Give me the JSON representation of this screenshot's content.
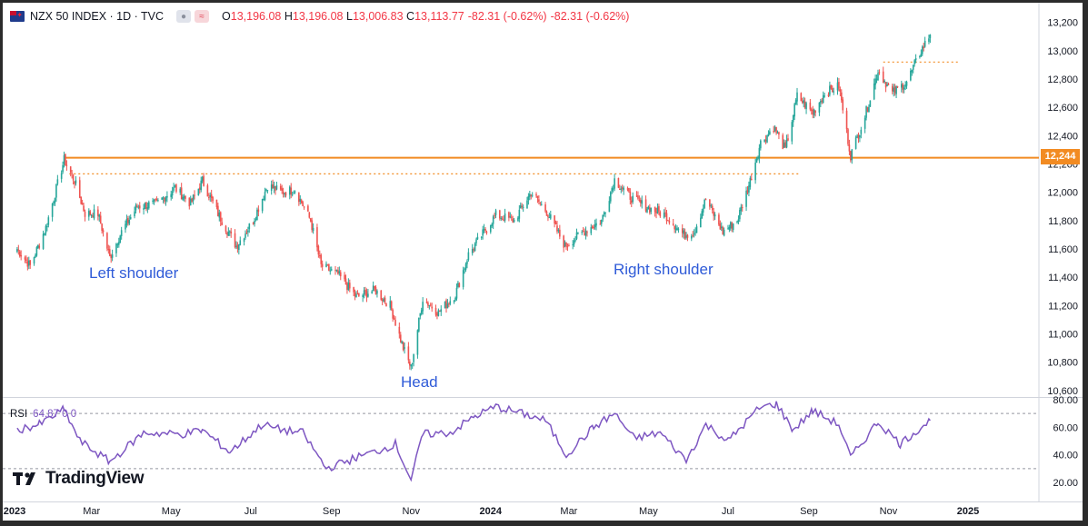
{
  "header": {
    "title": "NZX 50 INDEX · 1D · TVC",
    "open": "13,196.08",
    "high": "13,196.08",
    "low": "13,006.83",
    "close": "13,113.77",
    "change": "-82.31 (-0.62%)",
    "change2": "-82.31 (-0.62%)",
    "open_label": "O",
    "high_label": "H",
    "low_label": "L",
    "close_label": "C"
  },
  "rsi_panel": {
    "label": "RSI",
    "values": "64.87 0 0"
  },
  "brand": {
    "name": "TradingView"
  },
  "annotations": {
    "left_shoulder": "Left shoulder",
    "head": "Head",
    "right_shoulder": "Right shoulder"
  },
  "price_tag": "12,244",
  "colors": {
    "up": "#26a69a",
    "down": "#ef5350",
    "level": "#f28b22",
    "rsi": "#7e57c2",
    "label_blue": "#2f5bd8"
  },
  "chart_data": {
    "type": "candlestick",
    "y_axis_ticks": [
      "13,200",
      "13,000",
      "12,800",
      "12,600",
      "12,400",
      "12,200",
      "12,000",
      "11,800",
      "11,600",
      "11,400",
      "11,200",
      "11,000",
      "10,800",
      "10,600"
    ],
    "ylim": [
      10560,
      13230
    ],
    "x_ticks": [
      "2023",
      "Mar",
      "May",
      "Jul",
      "Sep",
      "Nov",
      "2024",
      "Mar",
      "May",
      "Jul",
      "Sep",
      "Nov",
      "2025"
    ],
    "series_close_anchors": [
      {
        "date": "2023-01-03",
        "close": 11600
      },
      {
        "date": "2023-01-13",
        "close": 11480
      },
      {
        "date": "2023-01-25",
        "close": 11750
      },
      {
        "date": "2023-02-08",
        "close": 12230
      },
      {
        "date": "2023-02-16",
        "close": 12080
      },
      {
        "date": "2023-02-24",
        "close": 11850
      },
      {
        "date": "2023-03-06",
        "close": 11850
      },
      {
        "date": "2023-03-15",
        "close": 11540
      },
      {
        "date": "2023-03-24",
        "close": 11720
      },
      {
        "date": "2023-04-05",
        "close": 11900
      },
      {
        "date": "2023-04-20",
        "close": 11920
      },
      {
        "date": "2023-05-04",
        "close": 12030
      },
      {
        "date": "2023-05-16",
        "close": 11920
      },
      {
        "date": "2023-05-25",
        "close": 12080
      },
      {
        "date": "2023-06-06",
        "close": 11850
      },
      {
        "date": "2023-06-20",
        "close": 11620
      },
      {
        "date": "2023-07-03",
        "close": 11800
      },
      {
        "date": "2023-07-14",
        "close": 12050
      },
      {
        "date": "2023-07-25",
        "close": 12000
      },
      {
        "date": "2023-08-04",
        "close": 12020
      },
      {
        "date": "2023-08-16",
        "close": 11800
      },
      {
        "date": "2023-08-24",
        "close": 11480
      },
      {
        "date": "2023-09-06",
        "close": 11420
      },
      {
        "date": "2023-09-20",
        "close": 11260
      },
      {
        "date": "2023-10-04",
        "close": 11310
      },
      {
        "date": "2023-10-16",
        "close": 11200
      },
      {
        "date": "2023-10-26",
        "close": 10900
      },
      {
        "date": "2023-11-01",
        "close": 10760
      },
      {
        "date": "2023-11-10",
        "close": 11250
      },
      {
        "date": "2023-11-22",
        "close": 11150
      },
      {
        "date": "2023-12-05",
        "close": 11280
      },
      {
        "date": "2023-12-15",
        "close": 11560
      },
      {
        "date": "2024-01-05",
        "close": 11840
      },
      {
        "date": "2024-01-19",
        "close": 11800
      },
      {
        "date": "2024-02-01",
        "close": 12000
      },
      {
        "date": "2024-02-14",
        "close": 11850
      },
      {
        "date": "2024-02-27",
        "close": 11620
      },
      {
        "date": "2024-03-12",
        "close": 11720
      },
      {
        "date": "2024-03-26",
        "close": 11800
      },
      {
        "date": "2024-04-05",
        "close": 12090
      },
      {
        "date": "2024-04-19",
        "close": 11950
      },
      {
        "date": "2024-05-03",
        "close": 11880
      },
      {
        "date": "2024-05-14",
        "close": 11840
      },
      {
        "date": "2024-05-28",
        "close": 11700
      },
      {
        "date": "2024-06-05",
        "close": 11720
      },
      {
        "date": "2024-06-14",
        "close": 11950
      },
      {
        "date": "2024-06-27",
        "close": 11720
      },
      {
        "date": "2024-07-08",
        "close": 11800
      },
      {
        "date": "2024-07-17",
        "close": 12050
      },
      {
        "date": "2024-07-26",
        "close": 12350
      },
      {
        "date": "2024-08-05",
        "close": 12460
      },
      {
        "date": "2024-08-14",
        "close": 12300
      },
      {
        "date": "2024-08-23",
        "close": 12680
      },
      {
        "date": "2024-09-04",
        "close": 12560
      },
      {
        "date": "2024-09-13",
        "close": 12700
      },
      {
        "date": "2024-09-24",
        "close": 12750
      },
      {
        "date": "2024-10-03",
        "close": 12260
      },
      {
        "date": "2024-10-14",
        "close": 12540
      },
      {
        "date": "2024-10-24",
        "close": 12860
      },
      {
        "date": "2024-11-04",
        "close": 12700
      },
      {
        "date": "2024-11-15",
        "close": 12780
      },
      {
        "date": "2024-11-26",
        "close": 13000
      },
      {
        "date": "2024-12-03",
        "close": 13113.77
      }
    ],
    "horizontal_levels": [
      {
        "value": 12244,
        "style": "solid"
      },
      {
        "value": 12130,
        "style": "dotted"
      },
      {
        "value": 12920,
        "style": "dotted"
      }
    ],
    "rsi": {
      "label": "RSI",
      "ticks": [
        "80.00",
        "60.00",
        "40.00",
        "20.00"
      ],
      "ylim": [
        15,
        82
      ],
      "bands": [
        70,
        30
      ],
      "anchors": [
        {
          "date": "2023-01-03",
          "v": 58
        },
        {
          "date": "2023-01-20",
          "v": 62
        },
        {
          "date": "2023-02-08",
          "v": 73
        },
        {
          "date": "2023-02-20",
          "v": 50
        },
        {
          "date": "2023-03-15",
          "v": 35
        },
        {
          "date": "2023-04-10",
          "v": 56
        },
        {
          "date": "2023-05-10",
          "v": 55
        },
        {
          "date": "2023-05-25",
          "v": 58
        },
        {
          "date": "2023-06-15",
          "v": 42
        },
        {
          "date": "2023-07-10",
          "v": 62
        },
        {
          "date": "2023-07-25",
          "v": 58
        },
        {
          "date": "2023-08-10",
          "v": 56
        },
        {
          "date": "2023-08-28",
          "v": 30
        },
        {
          "date": "2023-09-20",
          "v": 38
        },
        {
          "date": "2023-10-10",
          "v": 44
        },
        {
          "date": "2023-10-20",
          "v": 48
        },
        {
          "date": "2023-11-01",
          "v": 22
        },
        {
          "date": "2023-11-10",
          "v": 55
        },
        {
          "date": "2023-12-01",
          "v": 56
        },
        {
          "date": "2023-12-20",
          "v": 68
        },
        {
          "date": "2024-01-05",
          "v": 75
        },
        {
          "date": "2024-01-25",
          "v": 70
        },
        {
          "date": "2024-02-12",
          "v": 65
        },
        {
          "date": "2024-02-28",
          "v": 40
        },
        {
          "date": "2024-03-20",
          "v": 60
        },
        {
          "date": "2024-04-05",
          "v": 70
        },
        {
          "date": "2024-04-20",
          "v": 52
        },
        {
          "date": "2024-05-10",
          "v": 56
        },
        {
          "date": "2024-05-30",
          "v": 36
        },
        {
          "date": "2024-06-14",
          "v": 62
        },
        {
          "date": "2024-07-01",
          "v": 50
        },
        {
          "date": "2024-07-25",
          "v": 74
        },
        {
          "date": "2024-08-07",
          "v": 77
        },
        {
          "date": "2024-08-20",
          "v": 58
        },
        {
          "date": "2024-09-04",
          "v": 72
        },
        {
          "date": "2024-09-24",
          "v": 62
        },
        {
          "date": "2024-10-03",
          "v": 38
        },
        {
          "date": "2024-10-24",
          "v": 64
        },
        {
          "date": "2024-11-10",
          "v": 48
        },
        {
          "date": "2024-11-26",
          "v": 60
        },
        {
          "date": "2024-12-03",
          "v": 64.87
        }
      ]
    }
  }
}
